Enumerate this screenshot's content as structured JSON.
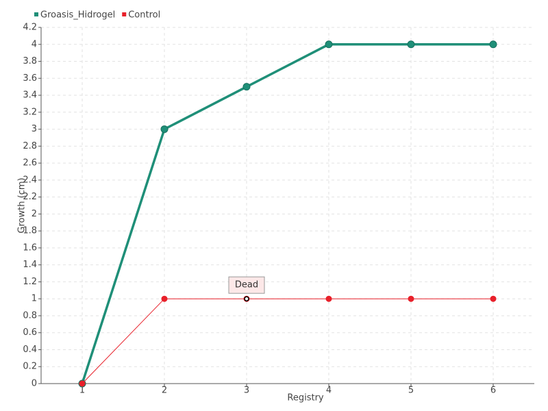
{
  "chart_data": {
    "type": "line",
    "x": [
      1,
      2,
      3,
      4,
      5,
      6
    ],
    "xlim": [
      0.5,
      6.5
    ],
    "xticks": [
      1,
      2,
      3,
      4,
      5,
      6
    ],
    "ylim": [
      0,
      4.2
    ],
    "yticks": [
      0,
      0.2,
      0.4,
      0.6,
      0.8,
      1,
      1.2,
      1.4,
      1.6,
      1.8,
      2,
      2.2,
      2.4,
      2.6,
      2.8,
      3,
      3.2,
      3.4,
      3.6,
      3.8,
      4,
      4.2
    ],
    "x_label": "Registry",
    "y_label": "Growth (cm)",
    "grid": true,
    "legend": "top-left",
    "series": [
      {
        "name": "Groasis_Hidrogel",
        "color": "#1f8f78",
        "values": [
          0,
          3,
          3.5,
          4,
          4,
          4
        ]
      },
      {
        "name": "Control",
        "color": "#e8202a",
        "values": [
          0,
          1,
          1,
          1,
          1,
          1
        ]
      }
    ],
    "annotations": [
      {
        "text": "Dead",
        "x": 3,
        "y": 1
      }
    ]
  }
}
